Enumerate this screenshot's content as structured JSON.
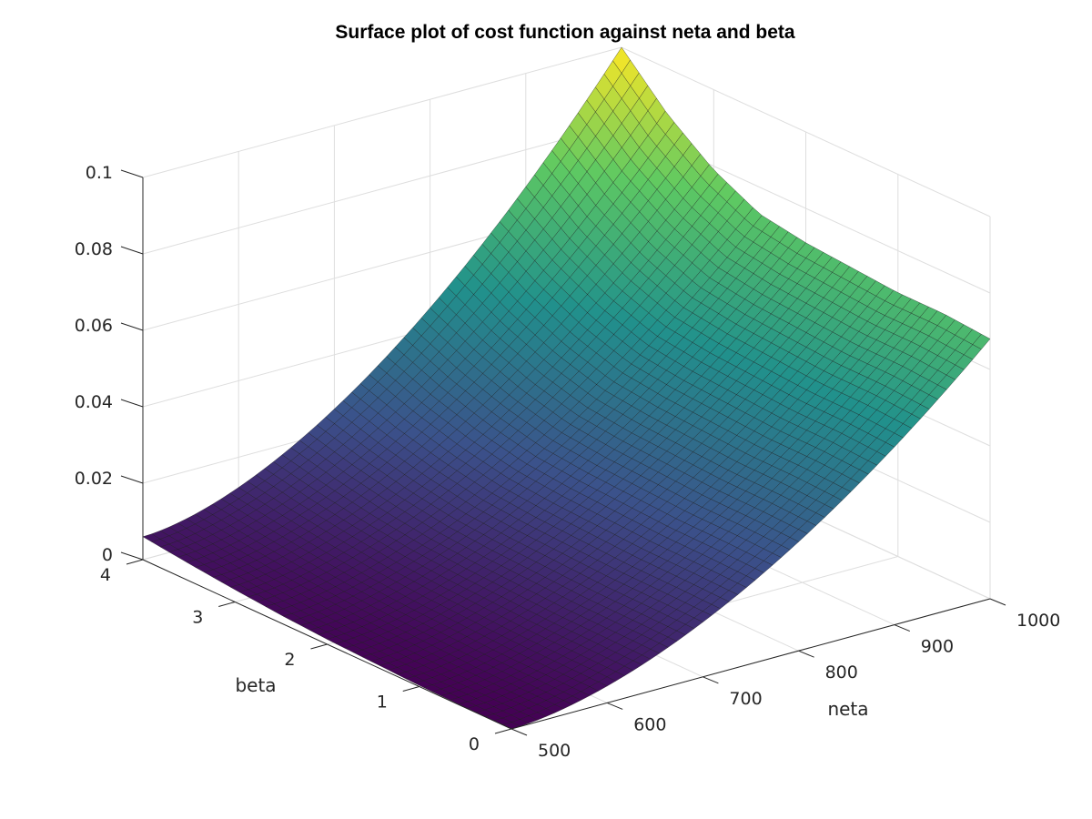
{
  "chart_data": {
    "type": "surface",
    "title": "Surface plot of cost function against neta and beta",
    "xlabel": "neta",
    "ylabel": "beta",
    "zlabel": "",
    "xlim": [
      500,
      1000
    ],
    "ylim": [
      0,
      4
    ],
    "zlim": [
      0,
      0.1
    ],
    "x_ticks": [
      "500",
      "600",
      "700",
      "800",
      "900",
      "1000"
    ],
    "y_ticks": [
      "0",
      "1",
      "2",
      "3",
      "4"
    ],
    "z_ticks": [
      "0",
      "0.02",
      "0.04",
      "0.06",
      "0.08",
      "0.1"
    ],
    "grid": true,
    "colormap": "viridis",
    "colormap_stops": [
      "#440154",
      "#3b528b",
      "#21918c",
      "#5ec962",
      "#fde725"
    ],
    "surface_samples": {
      "beta": [
        0,
        0.5,
        1,
        1.5,
        2,
        2.5,
        3,
        3.5,
        4
      ],
      "cost_at_neta_500": [
        0.0,
        0.0001,
        0.0003,
        0.0008,
        0.0013,
        0.0021,
        0.0032,
        0.0045,
        0.006
      ],
      "cost_at_neta_1000": [
        0.068,
        0.069,
        0.069,
        0.07,
        0.071,
        0.073,
        0.079,
        0.088,
        0.1
      ]
    }
  }
}
